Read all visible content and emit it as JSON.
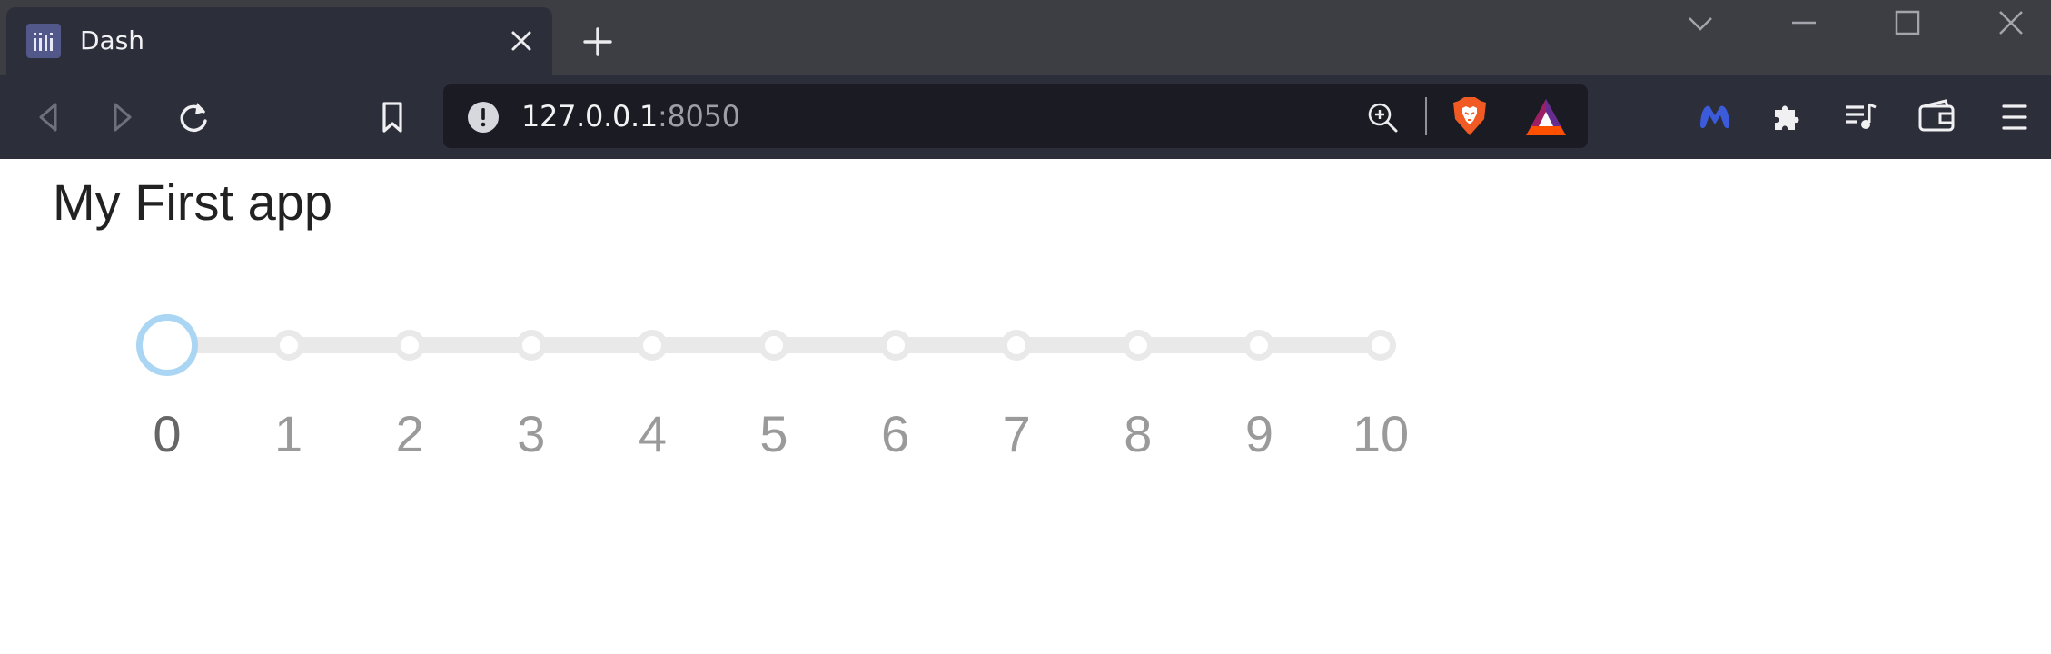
{
  "browser": {
    "tab": {
      "title": "Dash"
    },
    "address": {
      "host": "127.0.0.1",
      "port": ":8050"
    }
  },
  "app": {
    "title": "My First app",
    "slider": {
      "min": 0,
      "max": 10,
      "value": 0,
      "marks": [
        "0",
        "1",
        "2",
        "3",
        "4",
        "5",
        "6",
        "7",
        "8",
        "9",
        "10"
      ]
    }
  },
  "colors": {
    "tabstrip": "#3d3e44",
    "toolbar": "#2c2e39",
    "urlbar": "#1b1c23",
    "slider_rail": "#e9e9e9",
    "slider_handle": "#abd6f3",
    "mark_text": "#9a9a9a"
  }
}
